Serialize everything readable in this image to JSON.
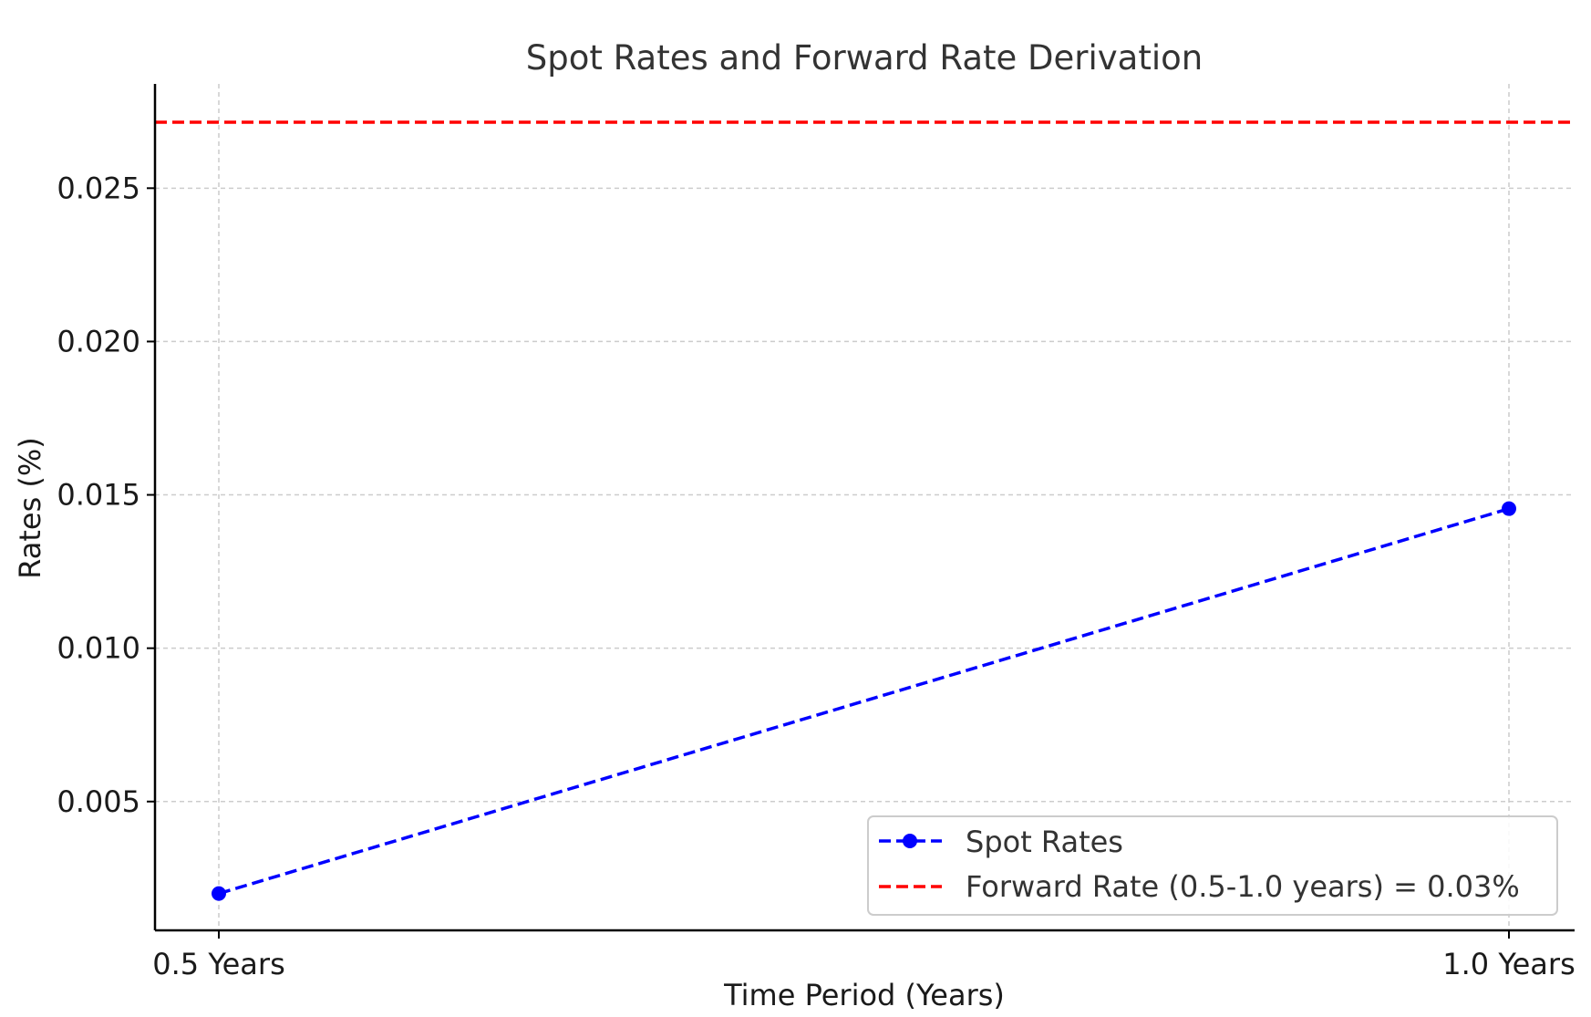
{
  "chart_data": {
    "type": "line",
    "title": "Spot Rates and Forward Rate Derivation",
    "xlabel": "Time Period (Years)",
    "ylabel": "Rates (%)",
    "categories": [
      "0.5 Years",
      "1.0 Years"
    ],
    "series": [
      {
        "name": "Spot Rates",
        "values": [
          0.002,
          0.01455
        ],
        "color": "#0000ff",
        "line_style": "dashed",
        "marker": "circle"
      }
    ],
    "reference_lines": [
      {
        "name": "Forward Rate (0.5-1.0 years) = 0.03%",
        "orientation": "horizontal",
        "value": 0.02715,
        "color": "#ff0000",
        "line_style": "dashed"
      }
    ],
    "yticks": [
      "0.005",
      "0.010",
      "0.015",
      "0.020",
      "0.025"
    ],
    "ytick_values": [
      0.005,
      0.01,
      0.015,
      0.02,
      0.025
    ],
    "ylim": [
      0.0008,
      0.0284
    ],
    "grid": true,
    "legend_position": "lower right"
  }
}
